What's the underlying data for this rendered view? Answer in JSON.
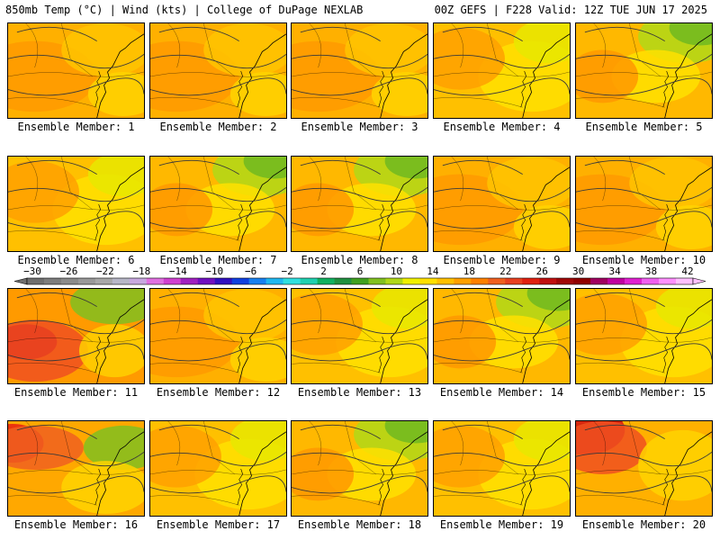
{
  "header": {
    "left_title": "850mb Temp (°C) | Wind (kts) | College of DuPage NEXLAB",
    "right_title": "00Z GEFS | F228 Valid: 12Z TUE JUN 17 2025"
  },
  "members": [
    {
      "label": "Ensemble Member: 1",
      "style": "warm"
    },
    {
      "label": "Ensemble Member: 2",
      "style": "warm"
    },
    {
      "label": "Ensemble Member: 3",
      "style": "warm"
    },
    {
      "label": "Ensemble Member: 4",
      "style": "mixed"
    },
    {
      "label": "Ensemble Member: 5",
      "style": "cool-ne"
    },
    {
      "label": "Ensemble Member: 6",
      "style": "mixed"
    },
    {
      "label": "Ensemble Member: 7",
      "style": "cool-ne"
    },
    {
      "label": "Ensemble Member: 8",
      "style": "cool-ne"
    },
    {
      "label": "Ensemble Member: 9",
      "style": "warm"
    },
    {
      "label": "Ensemble Member: 10",
      "style": "warm"
    },
    {
      "label": "Ensemble Member: 11",
      "style": "hot-sw"
    },
    {
      "label": "Ensemble Member: 12",
      "style": "warm"
    },
    {
      "label": "Ensemble Member: 13",
      "style": "mixed"
    },
    {
      "label": "Ensemble Member: 14",
      "style": "cool-ne"
    },
    {
      "label": "Ensemble Member: 15",
      "style": "mixed"
    },
    {
      "label": "Ensemble Member: 16",
      "style": "hot-w"
    },
    {
      "label": "Ensemble Member: 17",
      "style": "mixed"
    },
    {
      "label": "Ensemble Member: 18",
      "style": "cool-ne"
    },
    {
      "label": "Ensemble Member: 19",
      "style": "mixed"
    },
    {
      "label": "Ensemble Member: 20",
      "style": "hot-nw"
    }
  ],
  "colorbar": {
    "ticks": [
      "−30",
      "−26",
      "−22",
      "−18",
      "−14",
      "−10",
      "−6",
      "−2",
      "2",
      "6",
      "10",
      "14",
      "18",
      "22",
      "26",
      "30",
      "34",
      "38",
      "42"
    ],
    "colors": [
      "#6f6f6f",
      "#7d7d7d",
      "#8b8b8b",
      "#999999",
      "#a8a8a8",
      "#b7b7c7",
      "#c8a8e0",
      "#e070e0",
      "#d040d0",
      "#a020c0",
      "#7010c0",
      "#3010c0",
      "#1040e0",
      "#1880f0",
      "#20b8f0",
      "#30e0e0",
      "#20d0b0",
      "#10b060",
      "#209040",
      "#40a020",
      "#80c020",
      "#b0d818",
      "#f0f000",
      "#ffe000",
      "#ffc000",
      "#ffa000",
      "#ff8000",
      "#f06020",
      "#e84020",
      "#e02010",
      "#c01010",
      "#a00808",
      "#900000",
      "#a00060",
      "#c000a0",
      "#e020d0",
      "#f060f0",
      "#ff90ff",
      "#ffc0ff"
    ]
  }
}
